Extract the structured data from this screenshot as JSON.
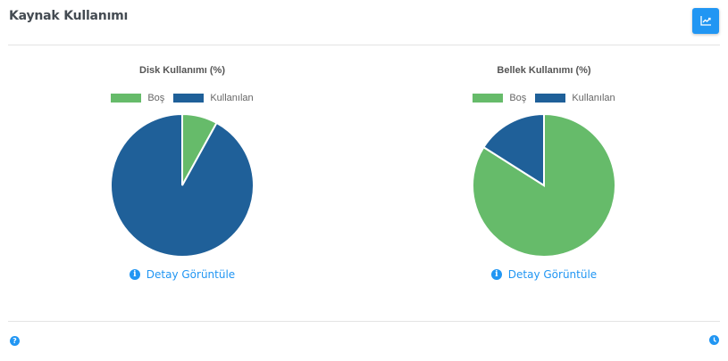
{
  "header": {
    "title": "Kaynak Kullanımı",
    "chart_button_icon": "chart-line-icon"
  },
  "panels": [
    {
      "title": "Disk Kullanımı (%)",
      "legend": [
        "Boş",
        "Kullanılan"
      ],
      "detail_label": "Detay Görüntüle",
      "detail_icon": "info-icon"
    },
    {
      "title": "Bellek Kullanımı (%)",
      "legend": [
        "Boş",
        "Kullanılan"
      ],
      "detail_label": "Detay Görüntüle",
      "detail_icon": "info-icon"
    }
  ],
  "footer": {
    "help_icon": "question-circle-icon",
    "help_glyph": "?",
    "clock_icon": "clock-icon"
  },
  "colors": {
    "free": "#66bb6a",
    "used": "#1f6099",
    "accent": "#2196f3"
  },
  "chart_data": [
    {
      "type": "pie",
      "title": "Disk Kullanımı (%)",
      "categories": [
        "Boş",
        "Kullanılan"
      ],
      "values": [
        8,
        92
      ],
      "colors": [
        "#66bb6a",
        "#1f6099"
      ],
      "legend_position": "top"
    },
    {
      "type": "pie",
      "title": "Bellek Kullanımı (%)",
      "categories": [
        "Boş",
        "Kullanılan"
      ],
      "values": [
        84,
        16
      ],
      "colors": [
        "#66bb6a",
        "#1f6099"
      ],
      "legend_position": "top"
    }
  ]
}
